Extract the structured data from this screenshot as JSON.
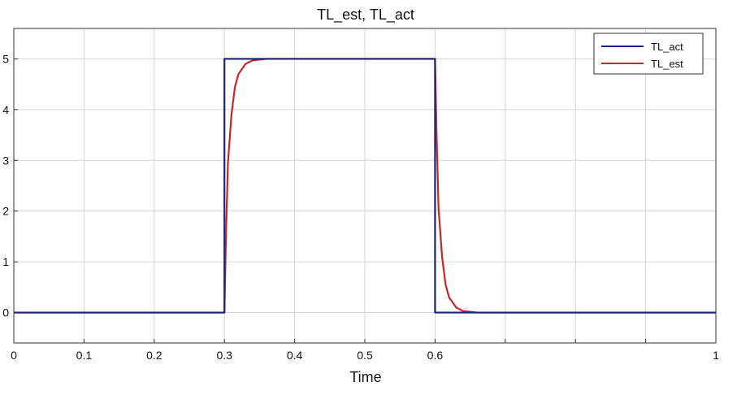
{
  "chart_data": {
    "type": "line",
    "title": "TL_est, TL_act",
    "xlabel": "Time",
    "ylabel": "",
    "xlim": [
      0,
      1
    ],
    "ylim": [
      -0.6,
      5.6
    ],
    "xticks": [
      0,
      0.1,
      0.2,
      0.3,
      0.4,
      0.5,
      0.6,
      0.7,
      0.8,
      0.9,
      1
    ],
    "xtick_labels": [
      "0",
      "0.1",
      "0.2",
      "0.3",
      "0.4",
      "0.5",
      "0.6",
      "",
      "",
      "",
      "1"
    ],
    "yticks": [
      0,
      1,
      2,
      3,
      4,
      5
    ],
    "ytick_labels": [
      "0",
      "1",
      "2",
      "3",
      "4",
      "5"
    ],
    "grid": true,
    "legend": "top-right",
    "series": [
      {
        "name": "TL_act",
        "color": "#1a237e",
        "x": [
          0,
          0.3,
          0.3,
          0.6,
          0.6,
          1.0
        ],
        "y": [
          0,
          0,
          5,
          5,
          0,
          0
        ]
      },
      {
        "name": "TL_est",
        "color": "#c62828",
        "x": [
          0,
          0.3,
          0.302,
          0.305,
          0.31,
          0.315,
          0.32,
          0.33,
          0.34,
          0.36,
          0.6,
          0.602,
          0.605,
          0.61,
          0.615,
          0.62,
          0.63,
          0.64,
          0.66,
          1.0
        ],
        "y": [
          0,
          0,
          1.4,
          2.95,
          3.9,
          4.45,
          4.7,
          4.9,
          4.97,
          5,
          5,
          3.6,
          2.05,
          1.1,
          0.55,
          0.3,
          0.1,
          0.03,
          0,
          0
        ]
      }
    ]
  }
}
